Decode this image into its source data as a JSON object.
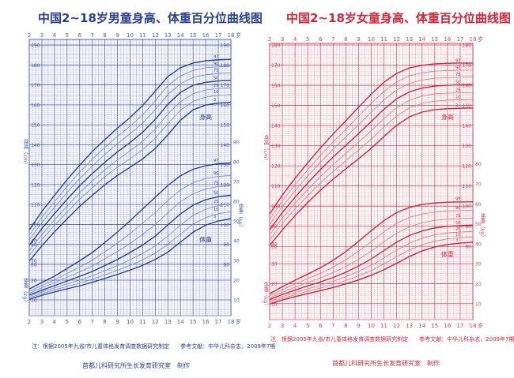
{
  "chart_data": [
    {
      "type": "line",
      "title": "中国2~18岁男童身高、体重百分位曲线图",
      "color": "#2a3f8f",
      "x_ticks": [
        "2",
        "3",
        "4",
        "5",
        "6",
        "7",
        "8",
        "9",
        "10",
        "11",
        "12",
        "13",
        "14",
        "15",
        "16",
        "17",
        "18"
      ],
      "x_unit": "岁",
      "xlim": [
        2,
        18
      ],
      "height_ylabel": "身高（cm）",
      "height_ticks": [
        "80",
        "90",
        "100",
        "110",
        "120",
        "130",
        "140",
        "150",
        "160",
        "170",
        "180",
        "190"
      ],
      "height_ylim": [
        78,
        192
      ],
      "weight_ylabel": "体重（kg）",
      "weight_ticks": [
        "10",
        "20",
        "30",
        "40",
        "50",
        "60",
        "70",
        "80",
        "90"
      ],
      "weight_ylim": [
        2,
        92
      ],
      "curve_x": [
        2,
        3,
        4,
        5,
        6,
        7,
        8,
        9,
        10,
        11,
        12,
        13,
        14,
        15,
        16,
        17,
        18
      ],
      "height_label": "身高",
      "weight_label": "体重",
      "height_series": [
        {
          "name": "3",
          "values": [
            81.6,
            89.3,
            96.3,
            102.8,
            109.1,
            114.6,
            119.9,
            124.6,
            128.7,
            132.9,
            138.1,
            145.0,
            152.3,
            157.5,
            159.9,
            160.9,
            161.3
          ]
        },
        {
          "name": "10",
          "values": [
            84.5,
            92.4,
            99.5,
            106.2,
            112.7,
            118.4,
            123.9,
            128.7,
            133.0,
            137.5,
            143.2,
            150.5,
            157.3,
            161.8,
            163.9,
            164.8,
            165.2
          ]
        },
        {
          "name": "25",
          "values": [
            86.8,
            94.9,
            102.3,
            109.2,
            115.9,
            121.8,
            127.4,
            132.4,
            136.9,
            141.7,
            147.9,
            155.4,
            161.6,
            165.6,
            167.4,
            168.2,
            168.5
          ]
        },
        {
          "name": "50",
          "values": [
            89.5,
            97.9,
            105.4,
            112.6,
            119.4,
            125.5,
            131.2,
            136.4,
            141.1,
            146.3,
            152.7,
            160.3,
            166.2,
            169.8,
            171.3,
            172.0,
            172.3
          ]
        },
        {
          "name": "75",
          "values": [
            92.2,
            100.9,
            108.6,
            116.0,
            123.0,
            129.3,
            135.1,
            140.5,
            145.5,
            150.9,
            157.6,
            165.2,
            170.6,
            173.8,
            175.1,
            175.8,
            176.1
          ]
        },
        {
          "name": "90",
          "values": [
            94.6,
            103.6,
            111.4,
            119.1,
            126.2,
            132.8,
            138.7,
            144.2,
            149.3,
            155.0,
            162.0,
            169.6,
            174.5,
            177.3,
            178.6,
            179.1,
            179.4
          ]
        },
        {
          "name": "97",
          "values": [
            97.2,
            106.5,
            114.6,
            122.4,
            129.7,
            136.6,
            142.6,
            148.3,
            153.6,
            159.7,
            166.9,
            174.2,
            178.6,
            181.0,
            182.1,
            182.6,
            182.8
          ]
        }
      ],
      "weight_series": [
        {
          "name": "3",
          "values": [
            10.3,
            12.3,
            14.0,
            15.6,
            17.1,
            18.9,
            20.9,
            22.9,
            25.1,
            27.5,
            30.5,
            34.2,
            39.3,
            44.3,
            47.9,
            50.0,
            51.1
          ]
        },
        {
          "name": "10",
          "values": [
            11.1,
            13.1,
            15.0,
            16.8,
            18.5,
            20.4,
            22.7,
            25.0,
            27.5,
            30.3,
            33.7,
            38.2,
            43.4,
            48.4,
            51.7,
            53.7,
            54.7
          ]
        },
        {
          "name": "25",
          "values": [
            11.8,
            14.0,
            16.1,
            18.1,
            20.0,
            22.2,
            24.8,
            27.4,
            30.3,
            33.5,
            37.4,
            42.3,
            47.9,
            52.8,
            56.0,
            57.8,
            58.6
          ]
        },
        {
          "name": "50",
          "values": [
            12.5,
            14.9,
            17.2,
            19.6,
            21.9,
            24.4,
            27.4,
            30.5,
            34.0,
            37.8,
            42.3,
            48.0,
            53.6,
            58.0,
            60.8,
            62.3,
            63.0
          ]
        },
        {
          "name": "75",
          "values": [
            13.4,
            16.1,
            18.7,
            21.5,
            24.2,
            27.2,
            30.8,
            34.5,
            38.6,
            43.2,
            48.2,
            54.2,
            59.8,
            63.8,
            66.2,
            67.5,
            68.0
          ]
        },
        {
          "name": "90",
          "values": [
            14.3,
            17.3,
            20.1,
            23.4,
            26.6,
            30.1,
            34.4,
            38.8,
            43.6,
            48.9,
            54.3,
            60.4,
            65.7,
            69.4,
            71.5,
            72.6,
            73.1
          ]
        },
        {
          "name": "97",
          "values": [
            15.5,
            18.8,
            22.0,
            25.9,
            29.8,
            34.0,
            39.1,
            44.4,
            50.1,
            56.1,
            62.0,
            68.0,
            72.9,
            76.2,
            78.0,
            79.0,
            79.4
          ]
        }
      ],
      "footnote": "注：根据2005年九省/市儿童体格发育调查数据研究制定　　参考文献：中华儿科杂志，2009年7期",
      "maker": "首都儿科研究所生长发育研究室　制作"
    },
    {
      "type": "line",
      "title": "中国2~18岁女童身高、体重百分位曲线图",
      "color": "#d0263b",
      "x_ticks": [
        "2",
        "3",
        "4",
        "5",
        "6",
        "7",
        "8",
        "9",
        "10",
        "11",
        "12",
        "13",
        "14",
        "15",
        "16",
        "17",
        "18"
      ],
      "x_unit": "岁",
      "xlim": [
        2,
        18
      ],
      "height_ylabel": "身高（cm）",
      "height_ticks": [
        "80",
        "90",
        "100",
        "110",
        "120",
        "130",
        "140",
        "150",
        "160",
        "170",
        "180"
      ],
      "height_ylim": [
        75,
        180
      ],
      "weight_ylabel": "体重（kg）",
      "weight_ticks": [
        "10",
        "20",
        "30",
        "40",
        "50",
        "60",
        "70",
        "80"
      ],
      "weight_ylim": [
        2,
        85
      ],
      "curve_x": [
        2,
        3,
        4,
        5,
        6,
        7,
        8,
        9,
        10,
        11,
        12,
        13,
        14,
        15,
        16,
        17,
        18
      ],
      "height_label": "身高",
      "weight_label": "体重",
      "height_series": [
        {
          "name": "3",
          "values": [
            80.5,
            88.2,
            95.3,
            101.8,
            107.9,
            113.4,
            118.5,
            123.5,
            128.7,
            134.6,
            140.1,
            144.3,
            146.7,
            147.9,
            148.4,
            148.6,
            148.7
          ]
        },
        {
          "name": "10",
          "values": [
            83.3,
            91.4,
            98.6,
            105.2,
            111.5,
            117.2,
            122.6,
            127.8,
            133.3,
            139.3,
            144.7,
            148.8,
            151.0,
            152.1,
            152.6,
            152.8,
            152.9
          ]
        },
        {
          "name": "25",
          "values": [
            85.8,
            94.1,
            101.4,
            108.2,
            114.6,
            120.6,
            126.2,
            131.8,
            137.4,
            143.5,
            148.8,
            152.6,
            154.7,
            155.7,
            156.1,
            156.3,
            156.4
          ]
        },
        {
          "name": "50",
          "values": [
            88.2,
            96.8,
            104.4,
            111.5,
            118.2,
            124.4,
            130.2,
            136.0,
            142.0,
            148.1,
            153.3,
            156.7,
            158.6,
            159.6,
            160.0,
            160.2,
            160.3
          ]
        },
        {
          "name": "75",
          "values": [
            90.9,
            99.8,
            107.6,
            114.9,
            121.8,
            128.3,
            134.4,
            140.4,
            146.7,
            152.8,
            157.7,
            160.9,
            162.6,
            163.5,
            163.8,
            164.0,
            164.1
          ]
        },
        {
          "name": "90",
          "values": [
            93.4,
            102.6,
            110.6,
            118.1,
            125.2,
            131.9,
            138.2,
            144.6,
            151.0,
            157.0,
            161.7,
            164.7,
            166.2,
            167.0,
            167.3,
            167.4,
            167.5
          ]
        },
        {
          "name": "97",
          "values": [
            96.0,
            105.5,
            113.8,
            121.5,
            128.9,
            135.8,
            142.4,
            149.1,
            155.6,
            161.5,
            165.9,
            168.6,
            169.9,
            170.6,
            170.9,
            171.0,
            171.0
          ]
        }
      ],
      "weight_series": [
        {
          "name": "3",
          "values": [
            9.7,
            11.8,
            13.5,
            15.0,
            16.5,
            18.1,
            19.9,
            21.9,
            24.2,
            27.0,
            30.2,
            33.6,
            36.4,
            38.4,
            39.6,
            40.3,
            40.7
          ]
        },
        {
          "name": "10",
          "values": [
            10.5,
            12.6,
            14.5,
            16.2,
            17.8,
            19.6,
            21.6,
            23.9,
            26.6,
            29.9,
            33.5,
            36.9,
            39.5,
            41.3,
            42.4,
            43.0,
            43.3
          ]
        },
        {
          "name": "25",
          "values": [
            11.2,
            13.5,
            15.6,
            17.4,
            19.2,
            21.2,
            23.5,
            26.2,
            29.2,
            32.9,
            36.8,
            40.3,
            42.8,
            44.4,
            45.4,
            45.9,
            46.1
          ]
        },
        {
          "name": "50",
          "values": [
            12.0,
            14.6,
            16.8,
            18.9,
            20.9,
            23.1,
            25.7,
            28.8,
            32.4,
            36.6,
            40.8,
            44.1,
            46.4,
            47.9,
            48.7,
            49.1,
            49.3
          ]
        },
        {
          "name": "75",
          "values": [
            12.9,
            15.7,
            18.2,
            20.6,
            22.9,
            25.5,
            28.6,
            32.2,
            36.3,
            41.0,
            45.3,
            48.5,
            50.5,
            51.7,
            52.3,
            52.6,
            52.8
          ]
        },
        {
          "name": "90",
          "values": [
            13.9,
            17.0,
            19.8,
            22.5,
            25.2,
            28.3,
            32.0,
            36.3,
            41.0,
            46.0,
            50.3,
            53.2,
            54.9,
            55.9,
            56.4,
            56.6,
            56.7
          ]
        },
        {
          "name": "97",
          "values": [
            15.0,
            18.5,
            21.7,
            24.8,
            28.0,
            31.7,
            36.1,
            41.2,
            46.5,
            51.6,
            55.6,
            58.2,
            59.7,
            60.4,
            60.8,
            60.9,
            61.0
          ]
        }
      ],
      "footnote": "注：根据2005年九省/市儿童体格发育调查数据研究制定　　参考文献：中华儿科杂志，2009年7期",
      "maker": "首都儿科研究所生长发育研究室　制作"
    }
  ]
}
